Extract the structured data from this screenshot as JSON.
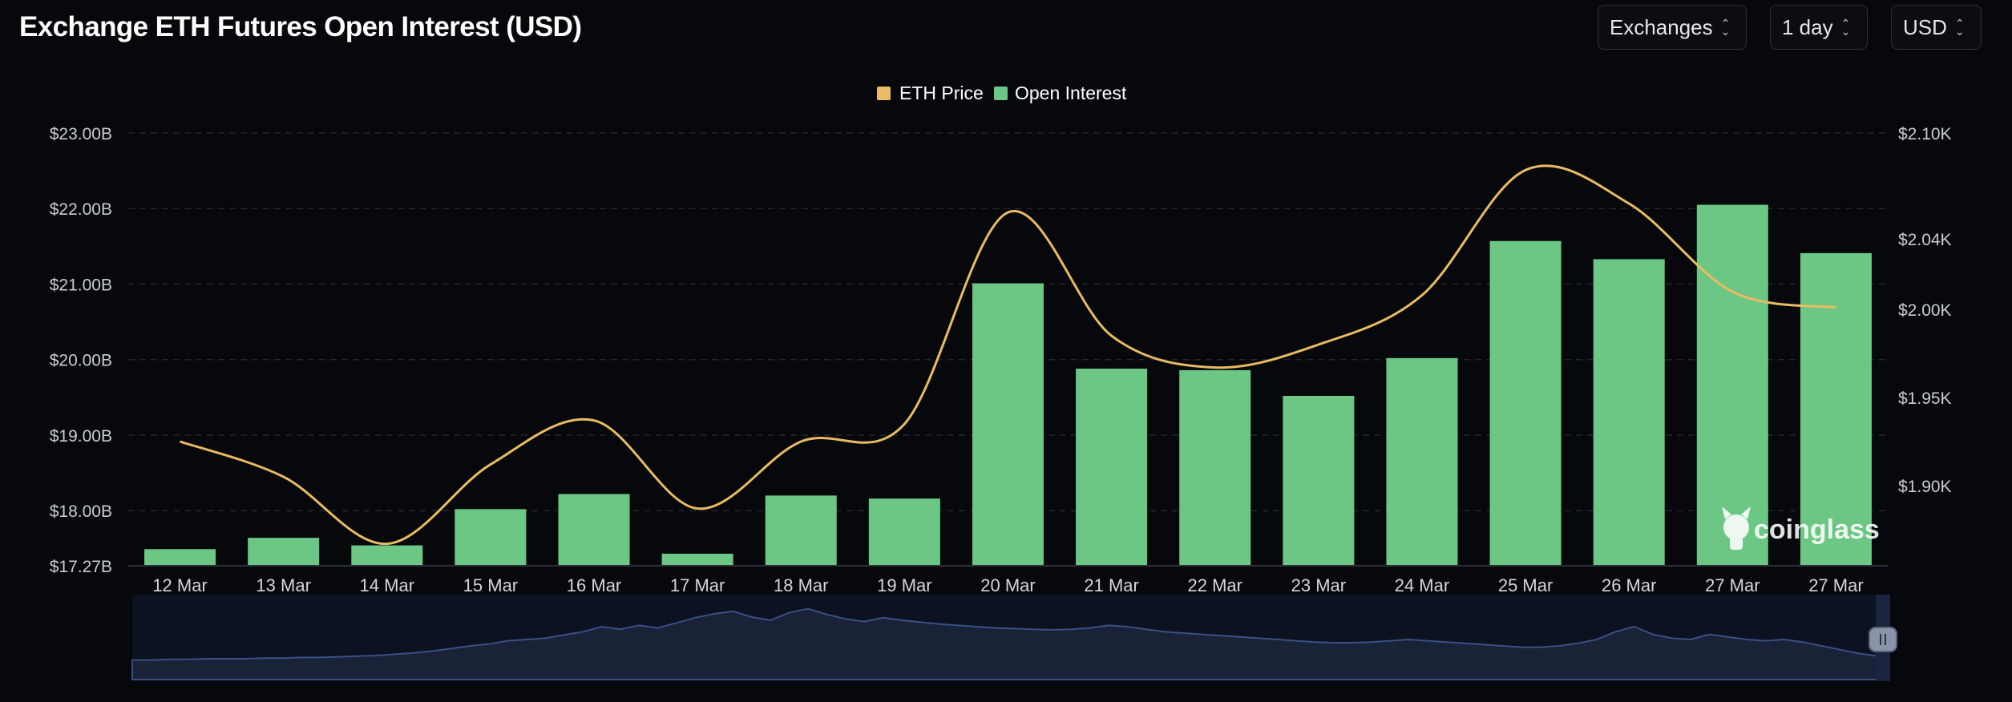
{
  "header": {
    "title": "Exchange ETH Futures Open Interest (USD)",
    "controls": [
      {
        "label": "Exchanges"
      },
      {
        "label": "1 day"
      },
      {
        "label": "USD"
      }
    ]
  },
  "watermark": "coinglass",
  "colors": {
    "background": "#06080c",
    "bar": "#6cc784",
    "line": "#e9bb62",
    "grid": "#23262d",
    "navigator": "#3a4f86"
  },
  "chart_data": {
    "type": "bar",
    "title": "Exchange ETH Futures Open Interest (USD)",
    "categories": [
      "12 Mar",
      "13 Mar",
      "14 Mar",
      "15 Mar",
      "16 Mar",
      "17 Mar",
      "18 Mar",
      "19 Mar",
      "20 Mar",
      "21 Mar",
      "22 Mar",
      "23 Mar",
      "24 Mar",
      "25 Mar",
      "26 Mar",
      "27 Mar",
      "27 Mar"
    ],
    "series": [
      {
        "name": "Open Interest",
        "type": "bar",
        "axis": "left",
        "values": [
          17.49,
          17.64,
          17.54,
          18.02,
          18.22,
          17.43,
          18.2,
          18.16,
          21.01,
          19.88,
          19.86,
          19.52,
          20.02,
          21.57,
          21.33,
          22.05,
          21.41
        ]
      },
      {
        "name": "ETH Price",
        "type": "line",
        "axis": "right",
        "values": [
          1925,
          1905,
          1867,
          1912,
          1937,
          1887,
          1925,
          1935,
          2055,
          1985,
          1967,
          1980,
          2008,
          2079,
          2060,
          2010,
          2001
        ]
      }
    ],
    "legend": [
      "ETH Price",
      "Open Interest"
    ],
    "legend_position": "top-center",
    "y_left": {
      "min": 17.27,
      "max": 23.0,
      "ticks": [
        17.27,
        18,
        19,
        20,
        21,
        22,
        23
      ],
      "tick_labels": [
        "$17.27B",
        "$18.00B",
        "$19.00B",
        "$20.00B",
        "$21.00B",
        "$22.00B",
        "$23.00B"
      ]
    },
    "y_right": {
      "min": 1850,
      "max": 2100,
      "ticks": [
        1900,
        1950,
        2000,
        2040,
        2100
      ],
      "tick_labels": [
        "$1.90K",
        "$1.95K",
        "$2.00K",
        "$2.04K",
        "$2.10K"
      ]
    },
    "grid": true,
    "navigator": {
      "values": [
        8,
        8,
        9,
        9,
        10,
        10,
        10,
        11,
        11,
        12,
        12,
        13,
        14,
        15,
        17,
        19,
        22,
        26,
        30,
        33,
        38,
        40,
        42,
        47,
        52,
        60,
        56,
        62,
        58,
        66,
        74,
        80,
        84,
        75,
        70,
        82,
        88,
        79,
        72,
        68,
        74,
        70,
        67,
        64,
        62,
        60,
        58,
        57,
        56,
        55,
        56,
        58,
        62,
        60,
        56,
        52,
        50,
        48,
        46,
        44,
        42,
        40,
        38,
        36,
        35,
        35,
        36,
        38,
        40,
        38,
        36,
        34,
        32,
        30,
        28,
        28,
        30,
        34,
        40,
        52,
        60,
        48,
        42,
        40,
        48,
        44,
        40,
        38,
        40,
        36,
        30,
        24,
        18,
        14
      ]
    }
  }
}
